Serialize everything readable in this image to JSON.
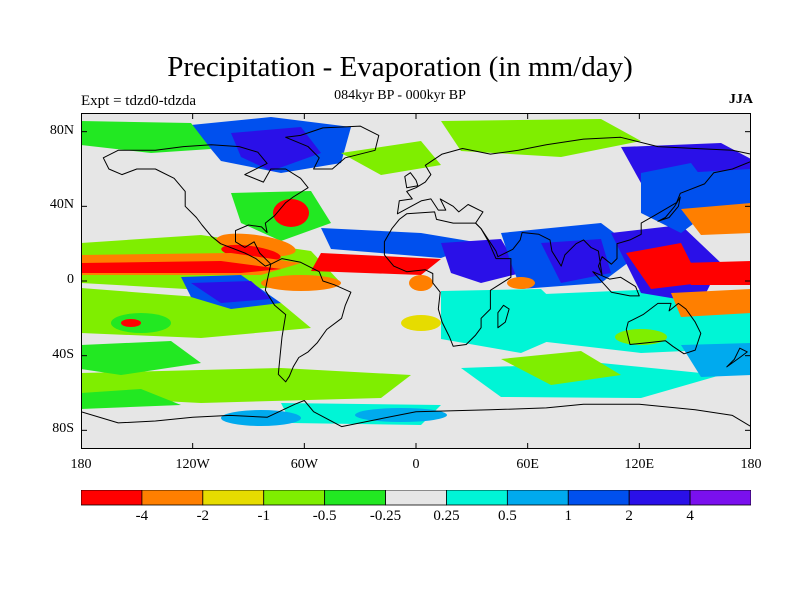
{
  "title": "Precipitation - Evaporation (in mm/day)",
  "subtitle": "084kyr BP - 000kyr BP",
  "experiment": "Expt = tdzd0-tdzda",
  "season": "JJA",
  "axes": {
    "y_ticks": [
      {
        "label": "80N",
        "lat": 80
      },
      {
        "label": "40N",
        "lat": 40
      },
      {
        "label": "0",
        "lat": 0
      },
      {
        "label": "40S",
        "lat": -40
      },
      {
        "label": "80S",
        "lat": -80
      }
    ],
    "x_ticks": [
      {
        "label": "180",
        "lon": -180
      },
      {
        "label": "120W",
        "lon": -120
      },
      {
        "label": "60W",
        "lon": -60
      },
      {
        "label": "0",
        "lon": 0
      },
      {
        "label": "60E",
        "lon": 60
      },
      {
        "label": "120E",
        "lon": 120
      },
      {
        "label": "180",
        "lon": 180
      }
    ],
    "lon_range": [
      -180,
      180
    ],
    "lat_range": [
      -90,
      90
    ]
  },
  "colorbar": {
    "labels": [
      "-4",
      "-2",
      "-1",
      "-0.5",
      "-0.25",
      "0.25",
      "0.5",
      "1",
      "2",
      "4"
    ],
    "colors": [
      "#ff0000",
      "#ff7f00",
      "#e6dc00",
      "#7fee00",
      "#22e822",
      "#e6e6e6",
      "#00f5d6",
      "#00aaee",
      "#0050ee",
      "#2a10e8",
      "#7a10ee"
    ]
  },
  "colors": {
    "background": "#e6e6e6",
    "coast": "#000000",
    "frame": "#000000"
  }
}
